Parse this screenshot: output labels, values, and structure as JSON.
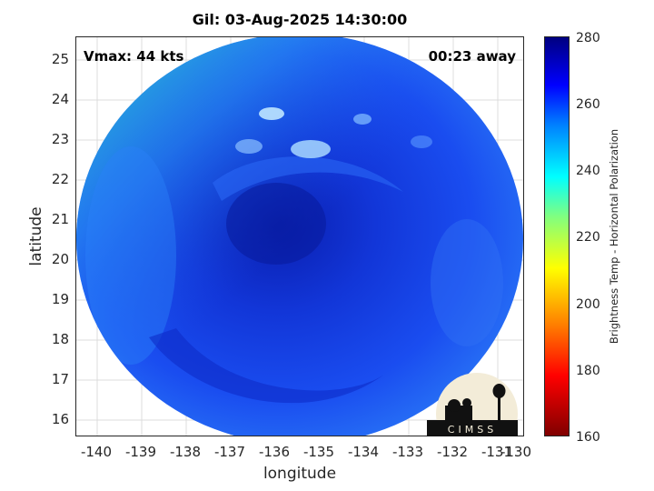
{
  "title": "Gil: 03-Aug-2025 14:30:00",
  "vmax_label": "Vmax: 44 kts",
  "time_away": "00:23 away",
  "map": {
    "xlabel": "longitude",
    "ylabel": "latitude",
    "x_ticks": [
      "-140",
      "-139",
      "-138",
      "-137",
      "-136",
      "-135",
      "-134",
      "-133",
      "-132",
      "-131",
      "-130"
    ],
    "y_ticks": [
      "25",
      "24",
      "23",
      "22",
      "21",
      "20",
      "19",
      "18",
      "17",
      "16"
    ],
    "xlim": [
      -140.6,
      -129.8
    ],
    "ylim": [
      15.6,
      25.6
    ],
    "grid": true
  },
  "colorbar": {
    "label": "Brightness Temp - Horizontal Polarization",
    "ticks": [
      "280",
      "260",
      "240",
      "220",
      "200",
      "180",
      "160"
    ],
    "range": [
      160,
      280
    ],
    "colormap": "jet"
  },
  "logo_text": "CIMSS",
  "colors": {
    "core": "#0a1fb0",
    "field": "#1a4af0",
    "warm_edge": "#22c8c8"
  }
}
